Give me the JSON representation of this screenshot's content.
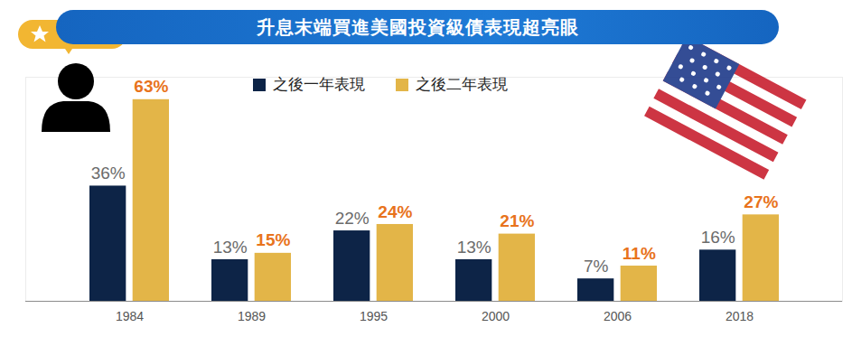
{
  "chart_data": {
    "type": "bar",
    "title": "升息末端買進美國投資級債表現超亮眼",
    "categories": [
      "1984",
      "1989",
      "1995",
      "2000",
      "2006",
      "2018"
    ],
    "series": [
      {
        "name": "之後一年表現",
        "color": "#0d2447",
        "values": [
          36,
          13,
          22,
          13,
          7,
          16
        ],
        "value_labels": [
          "36%",
          "13%",
          "22%",
          "13%",
          "7%",
          "16%"
        ]
      },
      {
        "name": "之後二年表現",
        "color": "#e3b548",
        "values": [
          63,
          15,
          24,
          21,
          11,
          27
        ],
        "value_labels": [
          "63%",
          "15%",
          "24%",
          "21%",
          "11%",
          "27%"
        ]
      }
    ],
    "ylim": [
      0,
      70
    ],
    "yticks": [],
    "grid": false,
    "legend": "top",
    "data_labels": true,
    "tick_labels": "x"
  }
}
